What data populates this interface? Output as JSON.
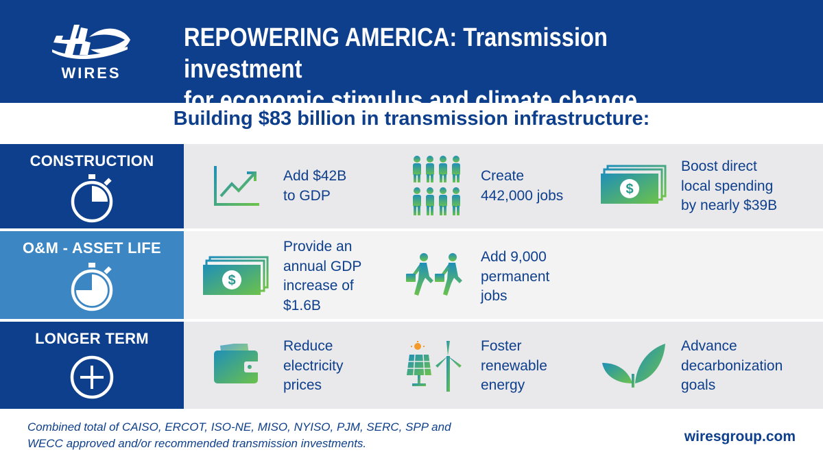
{
  "header": {
    "logo_text": "WIRES",
    "title_line1": "REPOWERING AMERICA: Transmission investment",
    "title_line2": "for economic stimulus and climate change"
  },
  "subtitle": "Building $83 billion in transmission infrastructure:",
  "colors": {
    "navy": "#0e3f8c",
    "mid_blue": "#3c86c3",
    "gradient_start": "#1f8fb8",
    "gradient_end": "#6cc24a"
  },
  "rows": [
    {
      "label": "CONSTRUCTION",
      "label_icon": "stopwatch-quarter-icon",
      "items": [
        {
          "icon": "growth-chart-icon",
          "lines": [
            "Add $42B",
            "to GDP"
          ]
        },
        {
          "icon": "people-group-icon",
          "lines": [
            "Create",
            "442,000 jobs"
          ]
        },
        {
          "icon": "money-stack-icon",
          "lines": [
            "Boost direct",
            "local spending",
            "by nearly $39B"
          ]
        }
      ]
    },
    {
      "label": "O&M - ASSET LIFE",
      "label_icon": "stopwatch-three-quarter-icon",
      "items": [
        {
          "icon": "money-stack-icon",
          "lines": [
            "Provide an",
            "annual GDP",
            "increase of",
            "$1.6B"
          ]
        },
        {
          "icon": "walking-workers-icon",
          "lines": [
            "Add 9,000",
            "permanent",
            "jobs"
          ]
        }
      ]
    },
    {
      "label": "LONGER TERM",
      "label_icon": "plus-circle-icon",
      "items": [
        {
          "icon": "wallet-icon",
          "lines": [
            "Reduce",
            "electricity",
            "prices"
          ]
        },
        {
          "icon": "solar-wind-icon",
          "lines": [
            "Foster",
            "renewable",
            "energy"
          ]
        },
        {
          "icon": "leaf-sprout-icon",
          "lines": [
            "Advance",
            "decarbonization",
            "goals"
          ]
        }
      ]
    }
  ],
  "footer": {
    "note_line1": "Combined total of CAISO, ERCOT, ISO-NE, MISO, NYISO, PJM, SERC, SPP and",
    "note_line2": "WECC approved and/or recommended transmission investments.",
    "website": "wiresgroup.com"
  }
}
